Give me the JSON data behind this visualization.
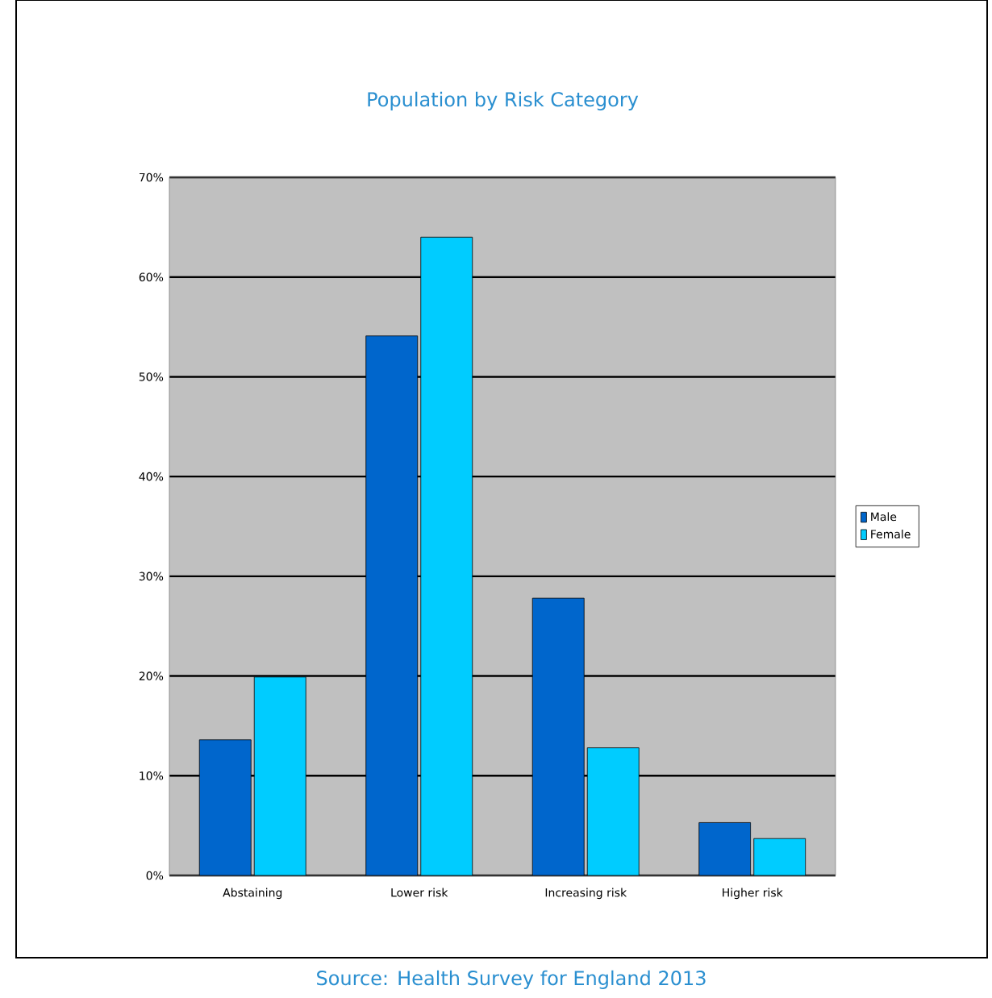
{
  "chart_data": {
    "type": "bar",
    "title": "Population by Risk Category",
    "annotations": [
      "Source: Health Survey for England 2013"
    ],
    "categories": [
      "Abstaining",
      "Lower risk",
      "Increasing risk",
      "Higher risk"
    ],
    "series": [
      {
        "name": "Male",
        "color": "#0066cc",
        "values": [
          13.6,
          54.1,
          27.8,
          5.3
        ]
      },
      {
        "name": "Female",
        "color": "#00ccff",
        "values": [
          19.9,
          64.0,
          12.8,
          3.7
        ]
      }
    ],
    "ylim": [
      0,
      70
    ],
    "yticks": [
      {
        "value": 0,
        "label": "0%"
      },
      {
        "value": 10,
        "label": "10%"
      },
      {
        "value": 20,
        "label": "20%"
      },
      {
        "value": 30,
        "label": "30%"
      },
      {
        "value": 40,
        "label": "40%"
      },
      {
        "value": 50,
        "label": "50%"
      },
      {
        "value": 60,
        "label": "60%"
      },
      {
        "value": 70,
        "label": "70%"
      }
    ],
    "grid": "y",
    "legend": "right"
  }
}
